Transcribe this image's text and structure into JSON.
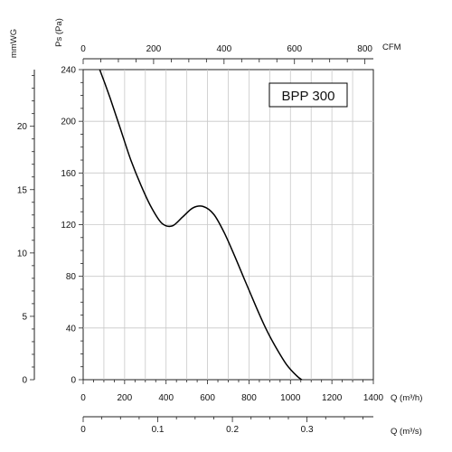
{
  "chart_data": {
    "type": "line",
    "title": "BPP 300",
    "x_primary": {
      "label": "Q (m³/h)",
      "ticks": [
        0,
        200,
        400,
        600,
        800,
        1000,
        1200,
        1400
      ],
      "range": [
        0,
        1400
      ]
    },
    "x_top": {
      "label": "CFM",
      "ticks": [
        0,
        200,
        400,
        600,
        800
      ]
    },
    "x_bottom": {
      "label": "Q (m³/s)",
      "ticks": [
        "0",
        "0.1",
        "0.2",
        "0.3"
      ],
      "tick_values": [
        0,
        0.1,
        0.2,
        0.3
      ]
    },
    "y_primary": {
      "label": "Ps (Pa)",
      "ticks": [
        0,
        40,
        80,
        120,
        160,
        200,
        240
      ],
      "range": [
        0,
        240
      ]
    },
    "y_secondary": {
      "label": "mmWG",
      "ticks": [
        0,
        5,
        10,
        15,
        20
      ]
    },
    "grid": true,
    "series": [
      {
        "x": [
          80,
          130,
          180,
          230,
          280,
          330,
          380,
          430,
          480,
          530,
          580,
          630,
          680,
          730,
          780,
          830,
          880,
          930,
          980,
          1030,
          1055
        ],
        "y": [
          240,
          218,
          194,
          170,
          150,
          133,
          121,
          119,
          126,
          133,
          134,
          128,
          114,
          96,
          77,
          58,
          40,
          25,
          12,
          3,
          0
        ]
      }
    ]
  }
}
